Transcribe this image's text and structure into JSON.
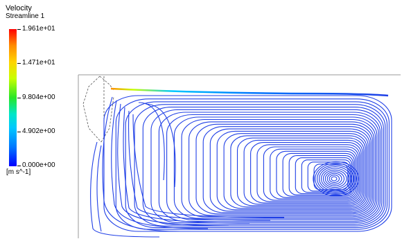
{
  "legend": {
    "title": "Velocity",
    "subtitle": "Streamline 1",
    "ticks": [
      "1.961e+01",
      "1.471e+01",
      "9.804e+00",
      "4.902e+00",
      "0.000e+00"
    ],
    "unit": "[m s^-1]",
    "colors": [
      "#ff0000",
      "#ffd400",
      "#28e628",
      "#00c8ff",
      "#0000ff"
    ]
  },
  "streamline_color": "#1f3fe6"
}
